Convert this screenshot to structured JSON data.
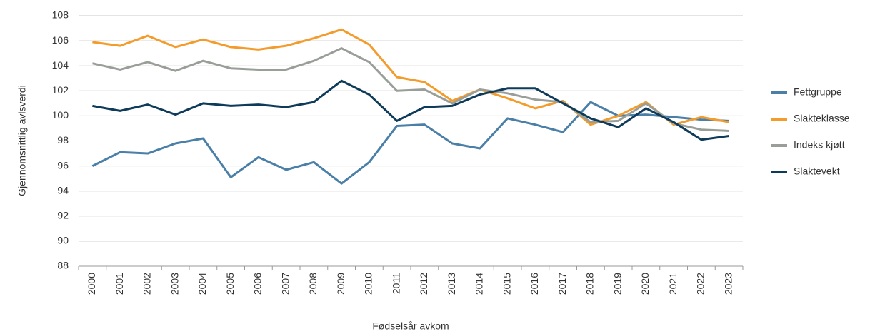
{
  "chart_data": {
    "type": "line",
    "x_label": "Fødselsår avkom",
    "y_label": "Gjennomsnittlig avlsverdi",
    "categories": [
      "2000",
      "2001",
      "2002",
      "2003",
      "2004",
      "2005",
      "2006",
      "2007",
      "2008",
      "2009",
      "2010",
      "2011",
      "2012",
      "2013",
      "2014",
      "2015",
      "2016",
      "2017",
      "2018",
      "2019",
      "2020",
      "2021",
      "2022",
      "2023"
    ],
    "series": [
      {
        "name": "Fettgruppe",
        "color": "#4a7fa8",
        "values": [
          96.0,
          97.1,
          97.0,
          97.8,
          98.2,
          95.1,
          96.7,
          95.7,
          96.3,
          94.6,
          96.3,
          99.2,
          99.3,
          97.8,
          97.4,
          99.8,
          99.3,
          98.7,
          101.1,
          100.0,
          100.1,
          99.9,
          99.7,
          99.6
        ]
      },
      {
        "name": "Slakteklasse",
        "color": "#f39c2c",
        "values": [
          105.9,
          105.6,
          106.4,
          105.5,
          106.1,
          105.5,
          105.3,
          105.6,
          106.2,
          106.9,
          105.7,
          103.1,
          102.7,
          101.2,
          102.1,
          101.4,
          100.6,
          101.2,
          99.3,
          100.0,
          101.1,
          99.3,
          99.9,
          99.5
        ]
      },
      {
        "name": "Indeks kjøtt",
        "color": "#999f98",
        "values": [
          104.2,
          103.7,
          104.3,
          103.6,
          104.4,
          103.8,
          103.7,
          103.7,
          104.4,
          105.4,
          104.3,
          102.0,
          102.1,
          101.0,
          102.1,
          101.8,
          101.3,
          101.1,
          99.5,
          99.6,
          101.0,
          99.4,
          98.9,
          98.8
        ]
      },
      {
        "name": "Slaktevekt",
        "color": "#0f3b5a",
        "values": [
          100.8,
          100.4,
          100.9,
          100.1,
          101.0,
          100.8,
          100.9,
          100.7,
          101.1,
          102.8,
          101.7,
          99.6,
          100.7,
          100.8,
          101.7,
          102.2,
          102.2,
          101.0,
          99.8,
          99.1,
          100.6,
          99.5,
          98.1,
          98.4
        ]
      }
    ],
    "ylim": [
      88,
      108
    ],
    "yticks": [
      88,
      90,
      92,
      94,
      96,
      98,
      100,
      102,
      104,
      106,
      108
    ],
    "grid": true,
    "legend": "right"
  }
}
